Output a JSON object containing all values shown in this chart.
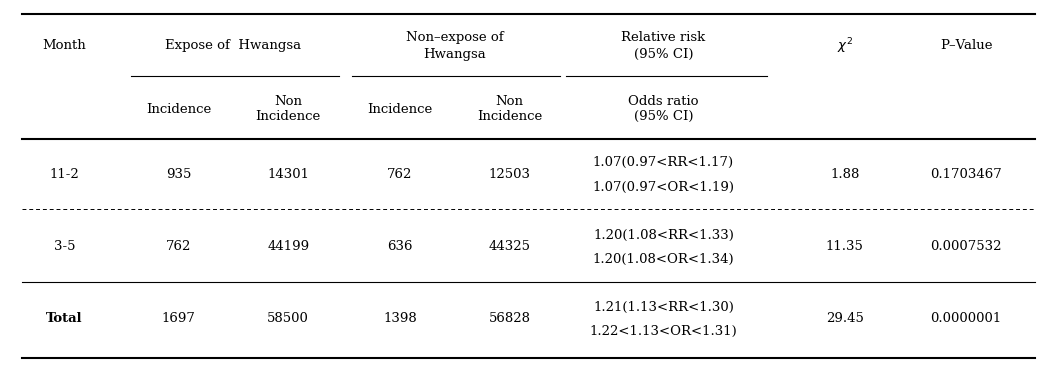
{
  "rows": [
    {
      "month": "11-2",
      "expose_inc": "935",
      "expose_noninc": "14301",
      "nonexpose_inc": "762",
      "nonexpose_noninc": "12503",
      "rr": "1.07(0.97<RR<1.17)",
      "or": "1.07(0.97<OR<1.19)",
      "chi2": "1.88",
      "pvalue": "0.1703467",
      "bold_month": false,
      "sep_style": "dashed"
    },
    {
      "month": "3-5",
      "expose_inc": "762",
      "expose_noninc": "44199",
      "nonexpose_inc": "636",
      "nonexpose_noninc": "44325",
      "rr": "1.20(1.08<RR<1.33)",
      "or": "1.20(1.08<OR<1.34)",
      "chi2": "11.35",
      "pvalue": "0.0007532",
      "bold_month": false,
      "sep_style": "solid"
    },
    {
      "month": "Total",
      "expose_inc": "1697",
      "expose_noninc": "58500",
      "nonexpose_inc": "1398",
      "nonexpose_noninc": "56828",
      "rr": "1.21(1.13<RR<1.30)",
      "or": "1.22<1.13<OR<1.31)",
      "chi2": "29.45",
      "pvalue": "0.0000001",
      "bold_month": true,
      "sep_style": "solid_thick"
    }
  ],
  "col_x": {
    "month": 0.06,
    "exp_inc": 0.168,
    "exp_noninc": 0.272,
    "nexp_inc": 0.378,
    "nexp_noninc": 0.482,
    "rr_or": 0.628,
    "chi2": 0.8,
    "pvalue": 0.915
  },
  "font_size": 9.5,
  "background_color": "#ffffff",
  "text_color": "#000000"
}
